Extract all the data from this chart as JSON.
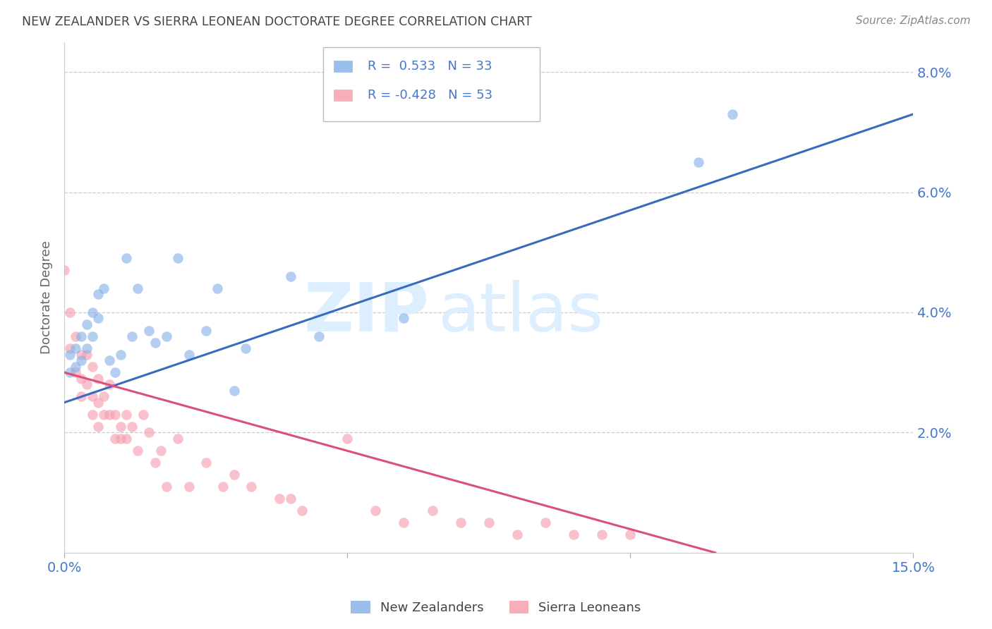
{
  "title": "NEW ZEALANDER VS SIERRA LEONEAN DOCTORATE DEGREE CORRELATION CHART",
  "source": "Source: ZipAtlas.com",
  "ylabel": "Doctorate Degree",
  "xmin": 0.0,
  "xmax": 0.15,
  "ymin": 0.0,
  "ymax": 0.085,
  "yticks": [
    0.0,
    0.02,
    0.04,
    0.06,
    0.08
  ],
  "ytick_labels": [
    "",
    "2.0%",
    "4.0%",
    "6.0%",
    "8.0%"
  ],
  "xticks": [
    0.0,
    0.05,
    0.1,
    0.15
  ],
  "xtick_labels": [
    "0.0%",
    "",
    "",
    "15.0%"
  ],
  "nz_color": "#8ab4e8",
  "sl_color": "#f5a0b0",
  "nz_line_color": "#3a6abf",
  "sl_line_color": "#d9507a",
  "grid_color": "#CCCCCC",
  "title_color": "#444444",
  "axis_color": "#4477CC",
  "text_color": "#333333",
  "legend_text_color": "#4477CC",
  "watermark_color": "#ddeeff",
  "nz_points_x": [
    0.001,
    0.001,
    0.002,
    0.002,
    0.003,
    0.003,
    0.004,
    0.004,
    0.005,
    0.005,
    0.006,
    0.006,
    0.007,
    0.008,
    0.009,
    0.01,
    0.011,
    0.012,
    0.013,
    0.015,
    0.016,
    0.018,
    0.02,
    0.022,
    0.025,
    0.027,
    0.03,
    0.032,
    0.04,
    0.045,
    0.06,
    0.112,
    0.118
  ],
  "nz_points_y": [
    0.033,
    0.03,
    0.034,
    0.031,
    0.036,
    0.032,
    0.038,
    0.034,
    0.04,
    0.036,
    0.043,
    0.039,
    0.044,
    0.032,
    0.03,
    0.033,
    0.049,
    0.036,
    0.044,
    0.037,
    0.035,
    0.036,
    0.049,
    0.033,
    0.037,
    0.044,
    0.027,
    0.034,
    0.046,
    0.036,
    0.039,
    0.065,
    0.073
  ],
  "sl_points_x": [
    0.0,
    0.001,
    0.001,
    0.002,
    0.002,
    0.003,
    0.003,
    0.003,
    0.004,
    0.004,
    0.005,
    0.005,
    0.005,
    0.006,
    0.006,
    0.006,
    0.007,
    0.007,
    0.008,
    0.008,
    0.009,
    0.009,
    0.01,
    0.01,
    0.011,
    0.011,
    0.012,
    0.013,
    0.014,
    0.015,
    0.016,
    0.017,
    0.018,
    0.02,
    0.022,
    0.025,
    0.028,
    0.03,
    0.033,
    0.038,
    0.04,
    0.042,
    0.05,
    0.055,
    0.06,
    0.065,
    0.07,
    0.075,
    0.08,
    0.085,
    0.09,
    0.095,
    0.1
  ],
  "sl_points_y": [
    0.047,
    0.034,
    0.04,
    0.03,
    0.036,
    0.029,
    0.033,
    0.026,
    0.033,
    0.028,
    0.031,
    0.026,
    0.023,
    0.029,
    0.025,
    0.021,
    0.023,
    0.026,
    0.023,
    0.028,
    0.019,
    0.023,
    0.021,
    0.019,
    0.023,
    0.019,
    0.021,
    0.017,
    0.023,
    0.02,
    0.015,
    0.017,
    0.011,
    0.019,
    0.011,
    0.015,
    0.011,
    0.013,
    0.011,
    0.009,
    0.009,
    0.007,
    0.019,
    0.007,
    0.005,
    0.007,
    0.005,
    0.005,
    0.003,
    0.005,
    0.003,
    0.003,
    0.003
  ],
  "nz_line_x0": 0.0,
  "nz_line_y0": 0.025,
  "nz_line_x1": 0.15,
  "nz_line_y1": 0.073,
  "sl_line_x0": 0.0,
  "sl_line_y0": 0.03,
  "sl_line_x1": 0.115,
  "sl_line_y1": 0.0,
  "legend_nz_r": "R =  0.533",
  "legend_nz_n": "N = 33",
  "legend_sl_r": "R = -0.428",
  "legend_sl_n": "N = 53",
  "legend_label_nz": "New Zealanders",
  "legend_label_sl": "Sierra Leoneans"
}
